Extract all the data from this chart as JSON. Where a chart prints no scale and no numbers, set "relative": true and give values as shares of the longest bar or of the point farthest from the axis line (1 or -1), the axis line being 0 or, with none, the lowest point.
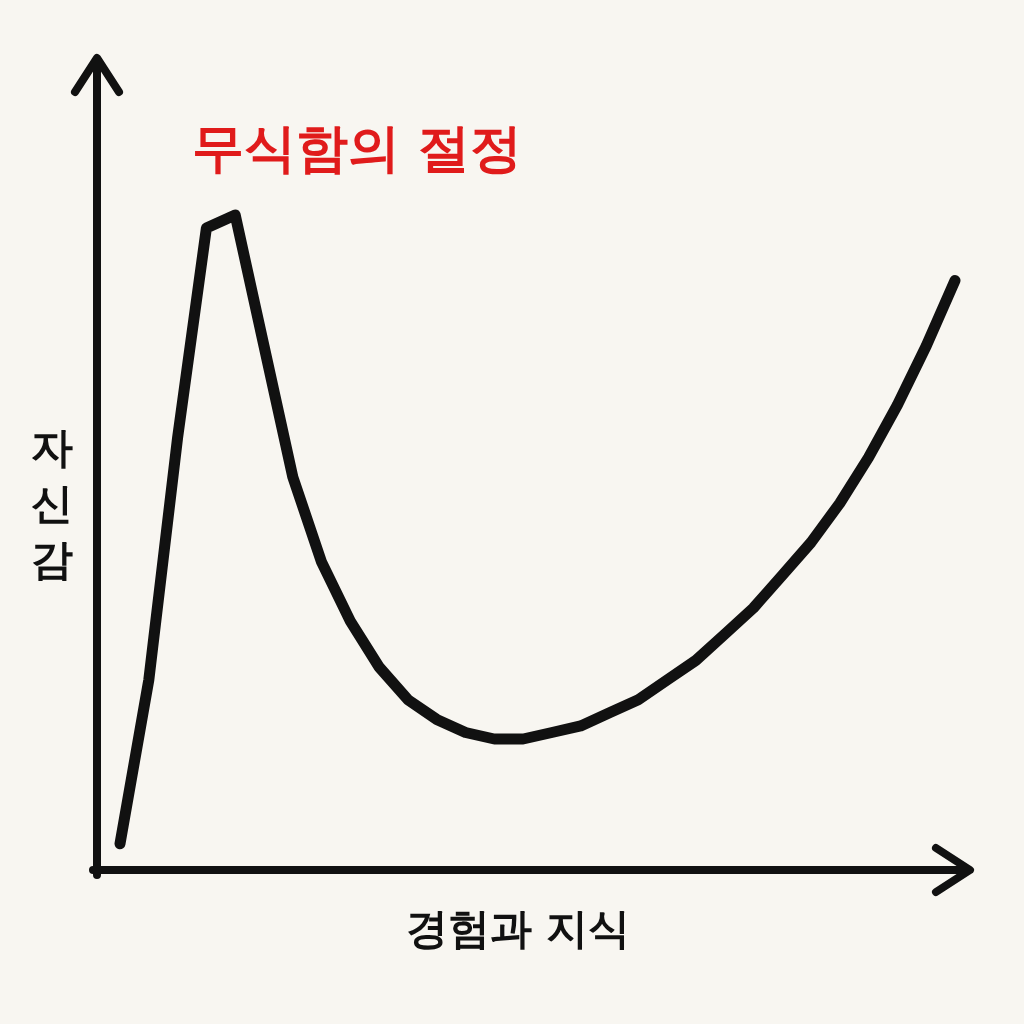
{
  "chart_data": {
    "type": "line",
    "relative": true,
    "xlabel": "경험과 지식",
    "ylabel": "자신감",
    "annotations": [
      "무식함의 절정"
    ],
    "color": "#111111",
    "categories": [
      null,
      null,
      null,
      null,
      null,
      null,
      null,
      null,
      null,
      null,
      null,
      null,
      null,
      null,
      null,
      null,
      null,
      null,
      null,
      null,
      null,
      null,
      null,
      null,
      null,
      null,
      null,
      null,
      null,
      null
    ],
    "values": [
      0.04,
      0.29,
      0.66,
      0.98,
      1,
      0.8,
      0.6,
      0.47,
      0.38,
      0.31,
      0.26,
      0.23,
      0.21,
      0.2,
      0.2,
      0.21,
      0.22,
      0.24,
      0.26,
      0.29,
      0.32,
      0.36,
      0.4,
      0.45,
      0.5,
      0.56,
      0.63,
      0.71,
      0.8,
      0.9
    ]
  }
}
